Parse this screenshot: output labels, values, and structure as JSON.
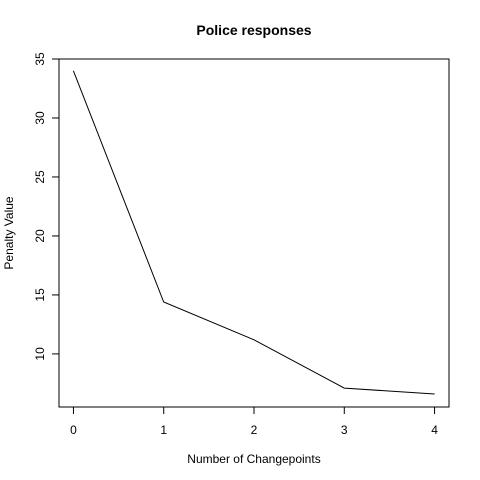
{
  "chart_data": {
    "type": "line",
    "title": "Police responses",
    "xlabel": "Number of Changepoints",
    "ylabel": "Penalty Value",
    "x": [
      0,
      1,
      2,
      3,
      4
    ],
    "y": [
      34.0,
      14.4,
      11.2,
      7.1,
      6.6
    ],
    "xticks": [
      "0",
      "1",
      "2",
      "3",
      "4"
    ],
    "yticks": [
      "10",
      "15",
      "20",
      "25",
      "30",
      "35"
    ],
    "xlim": [
      -0.16,
      4.16
    ],
    "ylim": [
      5.5,
      35
    ],
    "grid": false,
    "line_color": "#000000"
  }
}
